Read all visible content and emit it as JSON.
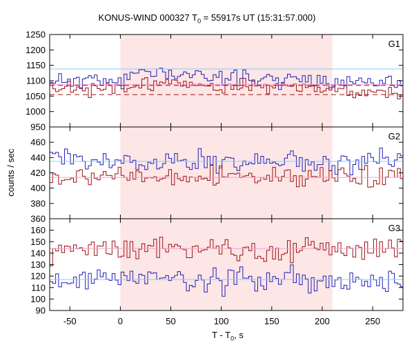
{
  "chart_data": {
    "type": "line",
    "title_prefix": "KONUS-WIND 000327 T",
    "title_sub": "0",
    "title_suffix": " = 55917s UT (15:31:57.000)",
    "xlabel_prefix": "T - T",
    "xlabel_sub": "0",
    "xlabel_suffix": ", s",
    "ylabel": "counts / sec",
    "xlim": [
      -70,
      280
    ],
    "xticks": [
      -50,
      0,
      50,
      100,
      150,
      200,
      250
    ],
    "highlight_interval": [
      0,
      210
    ],
    "colors": {
      "blue": "#1f1fb4",
      "red": "#9b1010",
      "light_blue": "#7fd0ff",
      "pink": "#f0a0d0",
      "shade": "#fde6e6"
    },
    "panels": [
      {
        "label": "G1",
        "ylim": [
          950,
          1250
        ],
        "yticks": [
          950,
          1000,
          1050,
          1100,
          1150,
          1200,
          1250
        ],
        "series": [
          {
            "color": "blue",
            "base": 1100,
            "amp": 38,
            "seed": 11,
            "shape": [
              [
                -70,
                0
              ],
              [
                0,
                0
              ],
              [
                20,
                30
              ],
              [
                60,
                20
              ],
              [
                120,
                10
              ],
              [
                210,
                0
              ],
              [
                280,
                -5
              ]
            ]
          },
          {
            "color": "red",
            "base": 1070,
            "amp": 34,
            "seed": 23,
            "shape": [
              [
                -70,
                0
              ],
              [
                0,
                5
              ],
              [
                40,
                25
              ],
              [
                120,
                15
              ],
              [
                210,
                0
              ],
              [
                280,
                -10
              ]
            ]
          }
        ],
        "levels": [
          {
            "color": "light_blue",
            "value": 1138,
            "style": "solid"
          },
          {
            "color": "pink",
            "value": 1088,
            "style": "solid"
          },
          {
            "color": "red",
            "value": 1085,
            "style": "dashed"
          },
          {
            "color": "red",
            "value": 1055,
            "style": "dashed"
          }
        ]
      },
      {
        "label": "G2",
        "ylim": [
          360,
          480
        ],
        "yticks": [
          360,
          380,
          400,
          420,
          440,
          460
        ],
        "series": [
          {
            "color": "blue",
            "base": 435,
            "amp": 22,
            "seed": 37,
            "shape": [
              [
                -70,
                0
              ],
              [
                280,
                0
              ]
            ]
          },
          {
            "color": "red",
            "base": 415,
            "amp": 18,
            "seed": 53,
            "shape": [
              [
                -70,
                0
              ],
              [
                280,
                0
              ]
            ]
          }
        ],
        "levels": [
          {
            "color": "light_blue",
            "value": 435,
            "style": "solid"
          },
          {
            "color": "pink",
            "value": 414,
            "style": "solid"
          }
        ]
      },
      {
        "label": "G3",
        "ylim": [
          90,
          170
        ],
        "yticks": [
          90,
          100,
          110,
          120,
          130,
          140,
          150,
          160
        ],
        "series": [
          {
            "color": "red",
            "base": 144,
            "amp": 16,
            "seed": 71,
            "shape": [
              [
                -70,
                0
              ],
              [
                280,
                0
              ]
            ]
          },
          {
            "color": "blue",
            "base": 117,
            "amp": 16,
            "seed": 89,
            "shape": [
              [
                -70,
                0
              ],
              [
                280,
                0
              ]
            ]
          }
        ],
        "levels": [
          {
            "color": "pink",
            "value": 144,
            "style": "solid"
          },
          {
            "color": "light_blue",
            "value": 117,
            "style": "solid"
          }
        ]
      }
    ]
  }
}
